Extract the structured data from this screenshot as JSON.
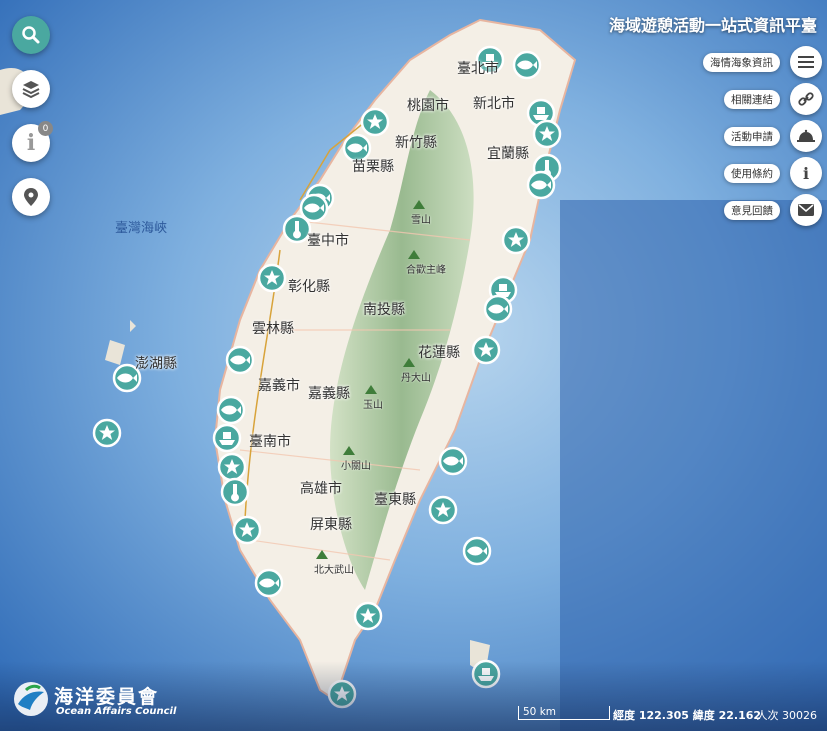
{
  "app": {
    "title": "海域遊憩活動一站式資訊平臺"
  },
  "left_controls": {
    "info_badge": "0"
  },
  "menu": [
    {
      "key": "ocean-weather",
      "label": "海情海象資訊",
      "icon": "menu-icon"
    },
    {
      "key": "related-links",
      "label": "相關連結",
      "icon": "link-icon"
    },
    {
      "key": "activity-apply",
      "label": "活動申請",
      "icon": "bell-icon"
    },
    {
      "key": "terms",
      "label": "使用條約",
      "icon": "info-icon"
    },
    {
      "key": "feedback",
      "label": "意見回饋",
      "icon": "mail-icon"
    }
  ],
  "map": {
    "sea_labels": [
      {
        "name": "臺灣海峽"
      }
    ],
    "places": [
      {
        "name": "臺北市"
      },
      {
        "name": "新北市"
      },
      {
        "name": "桃園市"
      },
      {
        "name": "新竹縣"
      },
      {
        "name": "苗栗縣"
      },
      {
        "name": "宜蘭縣"
      },
      {
        "name": "臺中市"
      },
      {
        "name": "彰化縣"
      },
      {
        "name": "南投縣"
      },
      {
        "name": "雲林縣"
      },
      {
        "name": "花蓮縣"
      },
      {
        "name": "嘉義市"
      },
      {
        "name": "嘉義縣"
      },
      {
        "name": "臺南市"
      },
      {
        "name": "高雄市"
      },
      {
        "name": "臺東縣"
      },
      {
        "name": "屏東縣"
      },
      {
        "name": "澎湖縣"
      }
    ],
    "mountains": [
      {
        "name": "雪山"
      },
      {
        "name": "合歡主峰"
      },
      {
        "name": "丹大山"
      },
      {
        "name": "玉山"
      },
      {
        "name": "小關山"
      },
      {
        "name": "北大武山"
      }
    ],
    "markers": [
      {
        "type": "boat"
      },
      {
        "type": "fish"
      },
      {
        "type": "star"
      },
      {
        "type": "fish"
      },
      {
        "type": "boat"
      },
      {
        "type": "star"
      },
      {
        "type": "thermo"
      },
      {
        "type": "fish"
      },
      {
        "type": "fish"
      },
      {
        "type": "fish"
      },
      {
        "type": "thermo"
      },
      {
        "type": "star"
      },
      {
        "type": "star"
      },
      {
        "type": "boat"
      },
      {
        "type": "fish"
      },
      {
        "type": "star"
      },
      {
        "type": "fish"
      },
      {
        "type": "fish"
      },
      {
        "type": "star"
      },
      {
        "type": "fish"
      },
      {
        "type": "boat"
      },
      {
        "type": "star"
      },
      {
        "type": "thermo"
      },
      {
        "type": "star"
      },
      {
        "type": "fish"
      },
      {
        "type": "star"
      },
      {
        "type": "fish"
      },
      {
        "type": "fish"
      },
      {
        "type": "star"
      },
      {
        "type": "boat"
      },
      {
        "type": "star"
      }
    ]
  },
  "footer": {
    "scale_label": "50 km",
    "coordinates": "經度 122.305 緯度 22.162",
    "visitors": "人次 30026",
    "logo_zh": "海洋委員會",
    "logo_en": "Ocean Affairs Council"
  },
  "colors": {
    "marker": "#4aa8a0",
    "sea": "#3d7cc4",
    "land": "#f4efe6",
    "accent": "#4aa8a0"
  }
}
